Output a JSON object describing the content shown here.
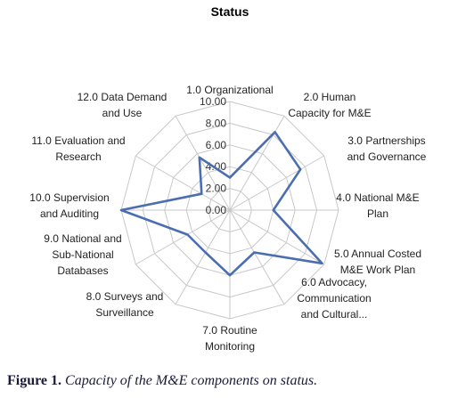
{
  "chart_data": {
    "type": "radar",
    "title": "Status",
    "categories": [
      "1.0 Organizational",
      "2.0 Human Capacity for M&E",
      "3.0 Partnerships and Governance",
      "4.0 National M&E Plan",
      "5.0 Annual Costed M&E Work Plan",
      "6.0 Advocacy, Communication and Cultural...",
      "7.0 Routine Monitoring",
      "8.0 Surveys and Surveillance",
      "9.0 National and Sub-National Databases",
      "10.0 Supervision and Auditing",
      "11.0 Evaluation and Research",
      "12.0 Data Demand and Use"
    ],
    "category_lines": [
      [
        "1.0 Organizational"
      ],
      [
        "2.0 Human",
        "Capacity for M&E"
      ],
      [
        "3.0 Partnerships",
        "and Governance"
      ],
      [
        "4.0 National M&E",
        "Plan"
      ],
      [
        "5.0 Annual Costed",
        "M&E Work Plan"
      ],
      [
        "6.0 Advocacy,",
        "Communication",
        "and Cultural..."
      ],
      [
        "7.0 Routine",
        "Monitoring"
      ],
      [
        "8.0 Surveys and",
        "Surveillance"
      ],
      [
        "9.0 National and",
        "Sub-National",
        "Databases"
      ],
      [
        "10.0 Supervision",
        "and Auditing"
      ],
      [
        "11.0 Evaluation and",
        "Research"
      ],
      [
        "12.0 Data Demand",
        "and Use"
      ]
    ],
    "series": [
      {
        "values": [
          3.0,
          8.3,
          7.5,
          4.0,
          9.8,
          4.5,
          6.0,
          4.5,
          4.5,
          10.0,
          3.0,
          5.6
        ]
      }
    ],
    "range": [
      0,
      10
    ],
    "ticks": [
      "0.00",
      "2.00",
      "4.00",
      "6.00",
      "8.00",
      "10.00"
    ],
    "series_color": "#4a6eb0",
    "grid_color": "#c8c8c8"
  },
  "caption": {
    "label": "Figure 1.",
    "text": "Capacity of the M&E components on status."
  }
}
